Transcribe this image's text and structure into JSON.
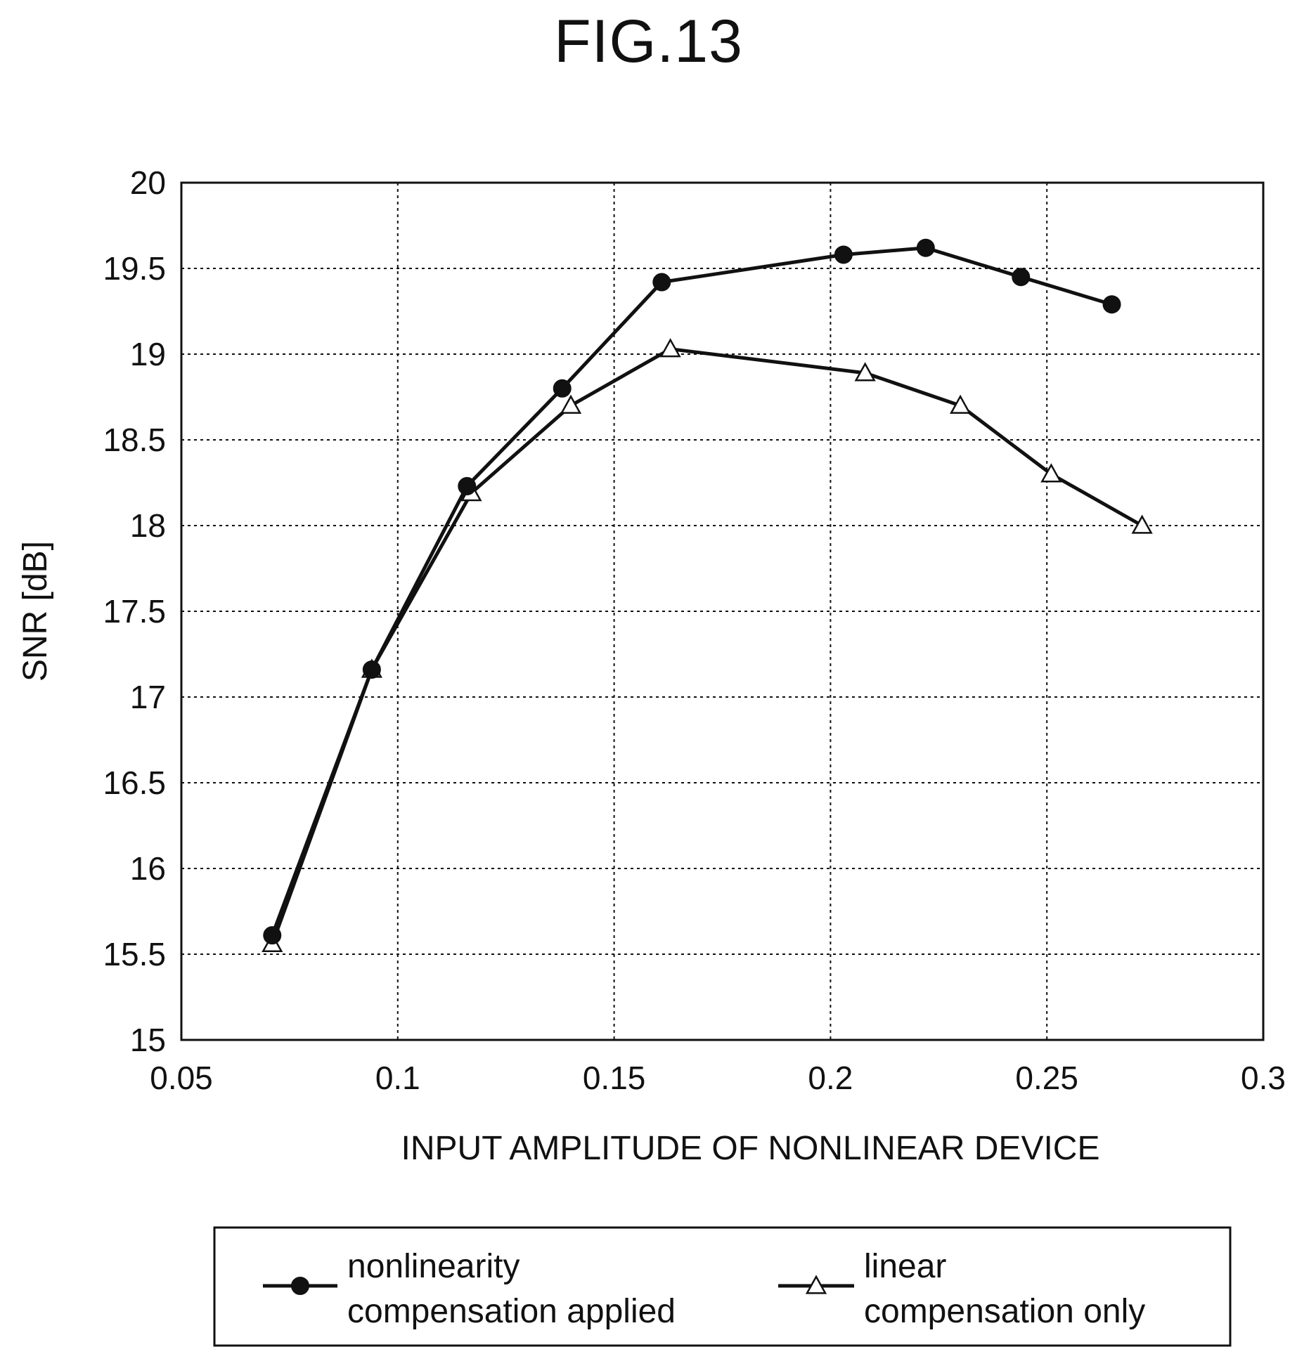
{
  "figure": {
    "label": "FIG.13"
  },
  "chart_data": {
    "type": "line",
    "title": "FIG.13",
    "xlabel": "INPUT AMPLITUDE OF NONLINEAR DEVICE",
    "ylabel": "SNR [dB]",
    "xlim": [
      0.05,
      0.3
    ],
    "ylim": [
      15,
      20
    ],
    "xticks": [
      0.05,
      0.1,
      0.15,
      0.2,
      0.25,
      0.3
    ],
    "xtick_labels": [
      "0.05",
      "0.1",
      "0.15",
      "0.2",
      "0.25",
      "0.3"
    ],
    "yticks": [
      15,
      15.5,
      16,
      16.5,
      17,
      17.5,
      18,
      18.5,
      19,
      19.5,
      20
    ],
    "ytick_labels": [
      "15",
      "15.5",
      "16",
      "16.5",
      "17",
      "17.5",
      "18",
      "18.5",
      "19",
      "19.5",
      "20"
    ],
    "grid": true,
    "grid_style": "dotted",
    "legend_position": "bottom",
    "series": [
      {
        "name": "nonlinearity compensation applied",
        "legend_lines": [
          "nonlinearity",
          "compensation applied"
        ],
        "marker": "filled-circle",
        "color": "#111111",
        "x": [
          0.071,
          0.094,
          0.116,
          0.138,
          0.161,
          0.203,
          0.222,
          0.244,
          0.265
        ],
        "y": [
          15.61,
          17.16,
          18.23,
          18.8,
          19.42,
          19.58,
          19.62,
          19.45,
          19.29
        ]
      },
      {
        "name": "linear compensation only",
        "legend_lines": [
          "linear",
          "compensation only"
        ],
        "marker": "open-triangle",
        "color": "#111111",
        "x": [
          0.071,
          0.094,
          0.117,
          0.14,
          0.163,
          0.208,
          0.23,
          0.251,
          0.272
        ],
        "y": [
          15.56,
          17.16,
          18.19,
          18.7,
          19.03,
          18.89,
          18.7,
          18.3,
          18.0
        ]
      }
    ]
  }
}
